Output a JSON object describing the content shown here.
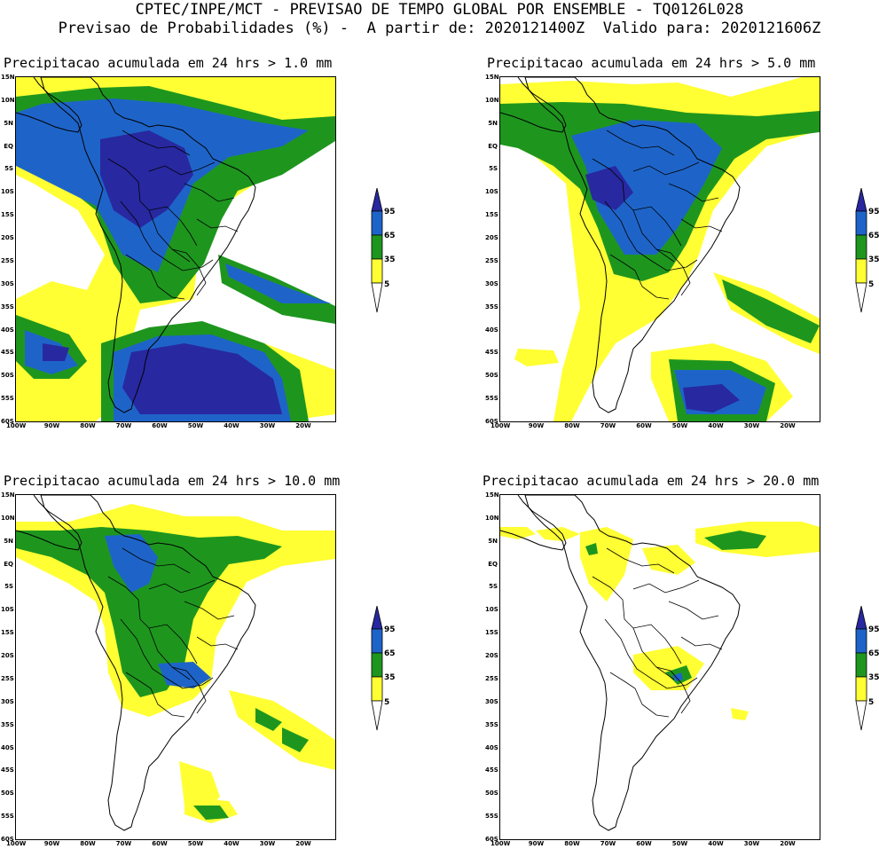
{
  "header": {
    "line1": "CPTEC/INPE/MCT - PREVISAO DE TEMPO GLOBAL POR ENSEMBLE - TQ0126L028",
    "line2": "Previsao de Probabilidades (%) -  A partir de: 2020121400Z  Valido para: 2020121606Z"
  },
  "panels": [
    {
      "title": "Precipitacao acumulada em 24 hrs > 1.0 mm"
    },
    {
      "title": "Precipitacao acumulada em 24 hrs > 5.0 mm"
    },
    {
      "title": "Precipitacao acumulada em 24 hrs > 10.0 mm"
    },
    {
      "title": "Precipitacao acumulada em 24 hrs > 20.0 mm"
    }
  ],
  "lat_labels": [
    "15N",
    "10N",
    "5N",
    "EQ",
    "5S",
    "10S",
    "15S",
    "20S",
    "25S",
    "30S",
    "35S",
    "40S",
    "45S",
    "50S",
    "55S",
    "60S"
  ],
  "lon_labels": [
    "100W",
    "90W",
    "80W",
    "70W",
    "60W",
    "50W",
    "40W",
    "30W",
    "20W"
  ],
  "colorbar": {
    "labels": [
      "95",
      "65",
      "35",
      "5"
    ],
    "colors": {
      "lt35": "#ffff33",
      "lt65": "#1e961e",
      "lt95": "#1e64c8",
      "gt95": "#2828a0"
    }
  }
}
